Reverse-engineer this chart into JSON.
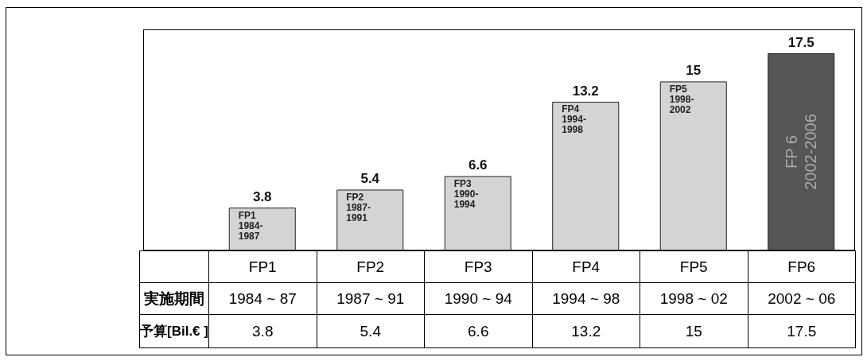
{
  "chart_data": {
    "type": "bar",
    "categories": [
      "FP1",
      "FP2",
      "FP3",
      "FP4",
      "FP5",
      "FP6"
    ],
    "values": [
      3.8,
      5.4,
      6.6,
      13.2,
      15,
      17.5
    ],
    "colors": [
      "#d4d4d4",
      "#d4d4d4",
      "#d4d4d4",
      "#d4d4d4",
      "#d4d4d4",
      "#555555"
    ],
    "value_labels": [
      "3.8",
      "5.4",
      "6.6",
      "13.2",
      "15",
      "17.5"
    ],
    "annotations": [
      "FP1\n1984-\n1987",
      "FP2\n1987-\n1991",
      "FP3\n1990-\n1994",
      "FP4\n1994-\n1998",
      "FP5\n1998-\n2002",
      "FP 6\n2002-2006",
      "1984 ~ 87",
      "1987 ~ 91",
      "1990 ~ 94",
      "1994 ~ 98",
      "1998 ~ 02",
      "2002 ~ 06",
      "3.8",
      "5.4",
      "6.6",
      "13.2",
      "15",
      "17.5",
      "実施期間",
      "予算[Bil.€ ]"
    ]
  }
}
